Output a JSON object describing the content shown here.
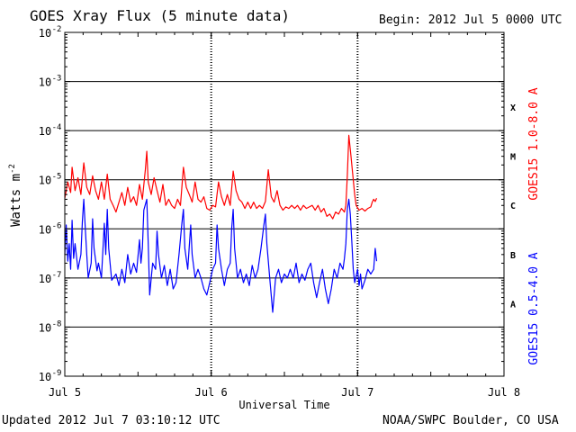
{
  "header": {
    "title": "GOES Xray Flux (5 minute data)",
    "begin_label": "Begin:  2012 Jul 5 0000 UTC"
  },
  "footer": {
    "updated": "Updated 2012 Jul  7 03:10:12 UTC",
    "credit": "NOAA/SWPC Boulder, CO USA"
  },
  "colors": {
    "long": "#ff0000",
    "short": "#0000ff",
    "axis": "#000000"
  },
  "chart_data": {
    "type": "line",
    "title": "GOES Xray Flux (5 minute data)",
    "xlabel": "Universal Time",
    "ylabel_base": "Watts m",
    "ylabel_exp": "-2",
    "y_scale": "log",
    "ylim": [
      1e-09,
      0.01
    ],
    "xlim": [
      0,
      3
    ],
    "x_ticks": [
      {
        "x": 0,
        "label": "Jul 5"
      },
      {
        "x": 1,
        "label": "Jul 6"
      },
      {
        "x": 2,
        "label": "Jul 7"
      },
      {
        "x": 3,
        "label": "Jul 8"
      }
    ],
    "y_ticks": [
      {
        "exp": "-9"
      },
      {
        "exp": "-8"
      },
      {
        "exp": "-7"
      },
      {
        "exp": "-6"
      },
      {
        "exp": "-5"
      },
      {
        "exp": "-4"
      },
      {
        "exp": "-3"
      },
      {
        "exp": "-2"
      }
    ],
    "y_tick_base": "10",
    "flare_classes": [
      {
        "label": "X",
        "value": 0.0003
      },
      {
        "label": "M",
        "value": 3e-05
      },
      {
        "label": "C",
        "value": 3e-06
      },
      {
        "label": "B",
        "value": 3e-07
      },
      {
        "label": "A",
        "value": 3e-08
      }
    ],
    "grid": "horizontal at each decade from 1e-8 to 1e-3",
    "series": [
      {
        "name": "GOES15 1.0-8.0 A",
        "color": "#ff0000",
        "points": [
          [
            0.0,
            4.2e-06
          ],
          [
            0.02,
            9e-06
          ],
          [
            0.04,
            5.5e-06
          ],
          [
            0.05,
            1.8e-05
          ],
          [
            0.07,
            6e-06
          ],
          [
            0.09,
            1.1e-05
          ],
          [
            0.11,
            5e-06
          ],
          [
            0.13,
            2.2e-05
          ],
          [
            0.15,
            7e-06
          ],
          [
            0.17,
            5e-06
          ],
          [
            0.19,
            1.2e-05
          ],
          [
            0.21,
            6e-06
          ],
          [
            0.23,
            4e-06
          ],
          [
            0.25,
            9e-06
          ],
          [
            0.27,
            4e-06
          ],
          [
            0.29,
            1.3e-05
          ],
          [
            0.31,
            4e-06
          ],
          [
            0.33,
            3e-06
          ],
          [
            0.35,
            2.2e-06
          ],
          [
            0.37,
            3.5e-06
          ],
          [
            0.39,
            5.5e-06
          ],
          [
            0.41,
            3e-06
          ],
          [
            0.43,
            7e-06
          ],
          [
            0.45,
            3.5e-06
          ],
          [
            0.47,
            4.5e-06
          ],
          [
            0.49,
            3e-06
          ],
          [
            0.51,
            8e-06
          ],
          [
            0.53,
            4e-06
          ],
          [
            0.55,
            1.6e-05
          ],
          [
            0.56,
            3.8e-05
          ],
          [
            0.57,
            9e-06
          ],
          [
            0.59,
            5e-06
          ],
          [
            0.61,
            1.1e-05
          ],
          [
            0.63,
            6e-06
          ],
          [
            0.65,
            3.5e-06
          ],
          [
            0.67,
            8e-06
          ],
          [
            0.69,
            3e-06
          ],
          [
            0.71,
            4e-06
          ],
          [
            0.73,
            3e-06
          ],
          [
            0.75,
            2.6e-06
          ],
          [
            0.77,
            4e-06
          ],
          [
            0.79,
            3e-06
          ],
          [
            0.81,
            1.8e-05
          ],
          [
            0.83,
            7e-06
          ],
          [
            0.85,
            5e-06
          ],
          [
            0.87,
            3.5e-06
          ],
          [
            0.89,
            9e-06
          ],
          [
            0.91,
            4e-06
          ],
          [
            0.93,
            3.5e-06
          ],
          [
            0.95,
            4.5e-06
          ],
          [
            0.97,
            2.6e-06
          ],
          [
            0.99,
            2.4e-06
          ],
          [
            1.01,
            3e-06
          ],
          [
            1.03,
            2.8e-06
          ],
          [
            1.05,
            9e-06
          ],
          [
            1.07,
            4.5e-06
          ],
          [
            1.09,
            3e-06
          ],
          [
            1.11,
            5e-06
          ],
          [
            1.13,
            3e-06
          ],
          [
            1.15,
            1.5e-05
          ],
          [
            1.17,
            6e-06
          ],
          [
            1.19,
            4e-06
          ],
          [
            1.21,
            3.5e-06
          ],
          [
            1.23,
            2.6e-06
          ],
          [
            1.25,
            3.5e-06
          ],
          [
            1.27,
            2.6e-06
          ],
          [
            1.29,
            3.5e-06
          ],
          [
            1.31,
            2.6e-06
          ],
          [
            1.33,
            3e-06
          ],
          [
            1.35,
            2.6e-06
          ],
          [
            1.37,
            3.6e-06
          ],
          [
            1.39,
            1.6e-05
          ],
          [
            1.41,
            4.5e-06
          ],
          [
            1.43,
            3.5e-06
          ],
          [
            1.45,
            6e-06
          ],
          [
            1.47,
            3e-06
          ],
          [
            1.49,
            2.4e-06
          ],
          [
            1.51,
            2.8e-06
          ],
          [
            1.53,
            2.6e-06
          ],
          [
            1.55,
            3e-06
          ],
          [
            1.57,
            2.6e-06
          ],
          [
            1.59,
            3e-06
          ],
          [
            1.61,
            2.4e-06
          ],
          [
            1.63,
            3e-06
          ],
          [
            1.65,
            2.6e-06
          ],
          [
            1.67,
            2.8e-06
          ],
          [
            1.69,
            3e-06
          ],
          [
            1.71,
            2.4e-06
          ],
          [
            1.73,
            3e-06
          ],
          [
            1.75,
            2.2e-06
          ],
          [
            1.77,
            2.6e-06
          ],
          [
            1.79,
            1.8e-06
          ],
          [
            1.81,
            2e-06
          ],
          [
            1.83,
            1.6e-06
          ],
          [
            1.85,
            2.2e-06
          ],
          [
            1.87,
            2e-06
          ],
          [
            1.89,
            2.6e-06
          ],
          [
            1.91,
            2.2e-06
          ],
          [
            1.92,
            3e-06
          ],
          [
            1.93,
            1.2e-05
          ],
          [
            1.94,
            8e-05
          ],
          [
            1.955,
            3e-05
          ],
          [
            1.97,
            1e-05
          ],
          [
            1.98,
            5e-06
          ],
          [
            1.99,
            3e-06
          ],
          [
            2.01,
            2.4e-06
          ],
          [
            2.03,
            2.6e-06
          ],
          [
            2.05,
            2.3e-06
          ],
          [
            2.07,
            2.6e-06
          ],
          [
            2.09,
            2.8e-06
          ],
          [
            2.1,
            3.5e-06
          ],
          [
            2.11,
            4e-06
          ],
          [
            2.12,
            3.6e-06
          ],
          [
            2.13,
            4.2e-06
          ]
        ]
      },
      {
        "name": "GOES15 0.5-4.0 A",
        "color": "#0000ff",
        "points": [
          [
            0.0,
            3e-07
          ],
          [
            0.01,
            1.2e-06
          ],
          [
            0.02,
            2.2e-07
          ],
          [
            0.03,
            5e-07
          ],
          [
            0.04,
            1.5e-07
          ],
          [
            0.05,
            1.5e-06
          ],
          [
            0.06,
            2.5e-07
          ],
          [
            0.07,
            5e-07
          ],
          [
            0.09,
            1.5e-07
          ],
          [
            0.11,
            3e-07
          ],
          [
            0.12,
            1.4e-06
          ],
          [
            0.13,
            4e-06
          ],
          [
            0.14,
            1e-06
          ],
          [
            0.15,
            3e-07
          ],
          [
            0.16,
            1e-07
          ],
          [
            0.18,
            2e-07
          ],
          [
            0.19,
            1.6e-06
          ],
          [
            0.2,
            4e-07
          ],
          [
            0.22,
            1.4e-07
          ],
          [
            0.23,
            2e-07
          ],
          [
            0.25,
            1e-07
          ],
          [
            0.27,
            1.3e-06
          ],
          [
            0.28,
            3e-07
          ],
          [
            0.29,
            2.5e-06
          ],
          [
            0.3,
            4e-07
          ],
          [
            0.32,
            9e-08
          ],
          [
            0.35,
            1.2e-07
          ],
          [
            0.37,
            7e-08
          ],
          [
            0.39,
            1.5e-07
          ],
          [
            0.41,
            8e-08
          ],
          [
            0.43,
            3e-07
          ],
          [
            0.45,
            1.2e-07
          ],
          [
            0.47,
            2e-07
          ],
          [
            0.49,
            1.3e-07
          ],
          [
            0.51,
            6e-07
          ],
          [
            0.52,
            2e-07
          ],
          [
            0.53,
            4e-07
          ],
          [
            0.54,
            2.4e-06
          ],
          [
            0.56,
            4e-06
          ],
          [
            0.57,
            5e-07
          ],
          [
            0.58,
            4.5e-08
          ],
          [
            0.6,
            2e-07
          ],
          [
            0.62,
            1.5e-07
          ],
          [
            0.63,
            9e-07
          ],
          [
            0.64,
            3e-07
          ],
          [
            0.66,
            1e-07
          ],
          [
            0.68,
            1.8e-07
          ],
          [
            0.7,
            7e-08
          ],
          [
            0.72,
            1.5e-07
          ],
          [
            0.74,
            6e-08
          ],
          [
            0.76,
            8e-08
          ],
          [
            0.78,
            3e-07
          ],
          [
            0.8,
            1.3e-06
          ],
          [
            0.81,
            2.5e-06
          ],
          [
            0.82,
            4e-07
          ],
          [
            0.84,
            1.5e-07
          ],
          [
            0.86,
            1.2e-06
          ],
          [
            0.87,
            3e-07
          ],
          [
            0.89,
            1e-07
          ],
          [
            0.91,
            1.5e-07
          ],
          [
            0.93,
            1e-07
          ],
          [
            0.95,
            6e-08
          ],
          [
            0.97,
            4.5e-08
          ],
          [
            0.99,
            8e-08
          ],
          [
            1.01,
            1.5e-07
          ],
          [
            1.03,
            2e-07
          ],
          [
            1.04,
            1.2e-06
          ],
          [
            1.05,
            4e-07
          ],
          [
            1.07,
            1.5e-07
          ],
          [
            1.09,
            7e-08
          ],
          [
            1.11,
            1.5e-07
          ],
          [
            1.13,
            2e-07
          ],
          [
            1.14,
            1e-06
          ],
          [
            1.15,
            2.5e-06
          ],
          [
            1.16,
            4e-07
          ],
          [
            1.18,
            1e-07
          ],
          [
            1.2,
            1.5e-07
          ],
          [
            1.22,
            8e-08
          ],
          [
            1.24,
            1.2e-07
          ],
          [
            1.26,
            7e-08
          ],
          [
            1.28,
            1.8e-07
          ],
          [
            1.3,
            1e-07
          ],
          [
            1.32,
            1.5e-07
          ],
          [
            1.34,
            4e-07
          ],
          [
            1.36,
            1.2e-06
          ],
          [
            1.37,
            2e-06
          ],
          [
            1.38,
            5e-07
          ],
          [
            1.4,
            1e-07
          ],
          [
            1.42,
            2e-08
          ],
          [
            1.44,
            1e-07
          ],
          [
            1.46,
            1.5e-07
          ],
          [
            1.48,
            8e-08
          ],
          [
            1.5,
            1.2e-07
          ],
          [
            1.52,
            1e-07
          ],
          [
            1.54,
            1.5e-07
          ],
          [
            1.56,
            1e-07
          ],
          [
            1.58,
            2e-07
          ],
          [
            1.6,
            8e-08
          ],
          [
            1.62,
            1.2e-07
          ],
          [
            1.64,
            9e-08
          ],
          [
            1.66,
            1.5e-07
          ],
          [
            1.68,
            2e-07
          ],
          [
            1.7,
            8e-08
          ],
          [
            1.72,
            4e-08
          ],
          [
            1.74,
            8e-08
          ],
          [
            1.76,
            1.5e-07
          ],
          [
            1.78,
            6e-08
          ],
          [
            1.8,
            3e-08
          ],
          [
            1.82,
            6e-08
          ],
          [
            1.84,
            1.5e-07
          ],
          [
            1.86,
            1e-07
          ],
          [
            1.88,
            2e-07
          ],
          [
            1.9,
            1.5e-07
          ],
          [
            1.91,
            2.5e-07
          ],
          [
            1.92,
            5e-07
          ],
          [
            1.93,
            2.5e-06
          ],
          [
            1.94,
            4e-06
          ],
          [
            1.95,
            2e-06
          ],
          [
            1.96,
            6e-07
          ],
          [
            1.97,
            1.5e-07
          ],
          [
            1.98,
            8e-08
          ],
          [
            2.0,
            1.5e-07
          ],
          [
            2.01,
            7e-08
          ],
          [
            2.02,
            1.2e-07
          ],
          [
            2.03,
            6e-08
          ],
          [
            2.05,
            9e-08
          ],
          [
            2.07,
            1.5e-07
          ],
          [
            2.09,
            1.2e-07
          ],
          [
            2.11,
            1.5e-07
          ],
          [
            2.12,
            4e-07
          ],
          [
            2.13,
            2.2e-07
          ]
        ]
      }
    ]
  }
}
